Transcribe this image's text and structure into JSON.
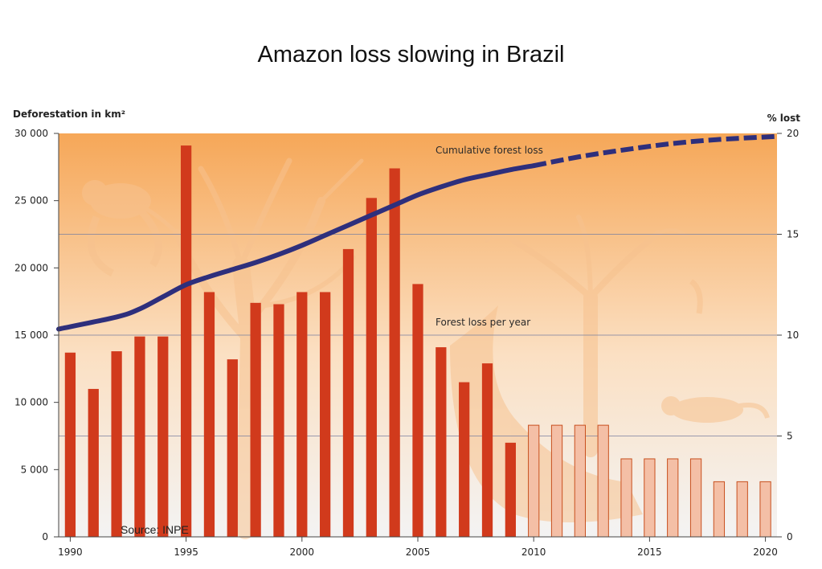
{
  "title": "Amazon loss slowing in Brazil",
  "source": "Source: INPE",
  "colors": {
    "bar": "#d13a1c",
    "bar_projected": "#f4bfa6",
    "bar_projected_stroke": "#c8501f",
    "line": "#2e2f7c",
    "bg_top": "#f6a758",
    "bg_bottom": "#f3f3f3",
    "silhouette": "#f7c28f",
    "grid": "#7a7fa0"
  },
  "icons": [
    "monkey-silhouette",
    "tree-silhouette",
    "jaguar-silhouette",
    "bird-silhouette"
  ],
  "chart_data": {
    "type": "bar",
    "title": "Amazon loss slowing in Brazil",
    "ylabel": "Deforestation in km²",
    "y2label": "% lost",
    "ylim": [
      0,
      30000
    ],
    "y2lim": [
      0,
      20
    ],
    "xlim": [
      1990,
      2020
    ],
    "yticks": [
      "30 000",
      "25 000",
      "20 000",
      "15 000",
      "10 000",
      "5 000",
      "0"
    ],
    "yticks_values": [
      30000,
      25000,
      20000,
      15000,
      10000,
      5000,
      0
    ],
    "y2ticks": [
      "20",
      "15",
      "10",
      "5",
      "0"
    ],
    "y2ticks_values": [
      20,
      15,
      10,
      5,
      0
    ],
    "xticks": [
      "1990",
      "1995",
      "2000",
      "2005",
      "2010",
      "2015",
      "2020"
    ],
    "xticks_values": [
      1990,
      1995,
      2000,
      2005,
      2010,
      2015,
      2020
    ],
    "grid": true,
    "bars": {
      "name": "Forest loss per year",
      "x": [
        1990,
        1991,
        1992,
        1993,
        1994,
        1995,
        1996,
        1997,
        1998,
        1999,
        2000,
        2001,
        2002,
        2003,
        2004,
        2005,
        2006,
        2007,
        2008,
        2009
      ],
      "values": [
        13700,
        11000,
        13800,
        14900,
        14900,
        29100,
        18200,
        13200,
        17400,
        17300,
        18200,
        18200,
        21400,
        25200,
        27400,
        18800,
        14100,
        11500,
        12900,
        7000
      ]
    },
    "projected_bars": {
      "x": [
        2010,
        2011,
        2012,
        2013,
        2014,
        2015,
        2016,
        2017,
        2018,
        2019,
        2020
      ],
      "values": [
        8300,
        8300,
        8300,
        8300,
        5800,
        5800,
        5800,
        5800,
        4100,
        4100,
        4100
      ]
    },
    "line": {
      "name": "Cumulative forest loss",
      "axis": "right",
      "x": [
        1990,
        1992,
        1993,
        1994,
        1995,
        1996,
        1997,
        1998,
        1999,
        2000,
        2001,
        2002,
        2003,
        2004,
        2005,
        2006,
        2007,
        2008,
        2009,
        2010
      ],
      "values": [
        10.3,
        10.9,
        11.3,
        11.9,
        12.5,
        12.9,
        13.25,
        13.6,
        14.0,
        14.45,
        14.95,
        15.45,
        15.95,
        16.45,
        16.95,
        17.35,
        17.7,
        17.95,
        18.2,
        18.4
      ],
      "projected_x": [
        2010,
        2012,
        2014,
        2016,
        2018,
        2020
      ],
      "projected_values": [
        18.4,
        18.85,
        19.2,
        19.5,
        19.7,
        19.85
      ]
    }
  }
}
